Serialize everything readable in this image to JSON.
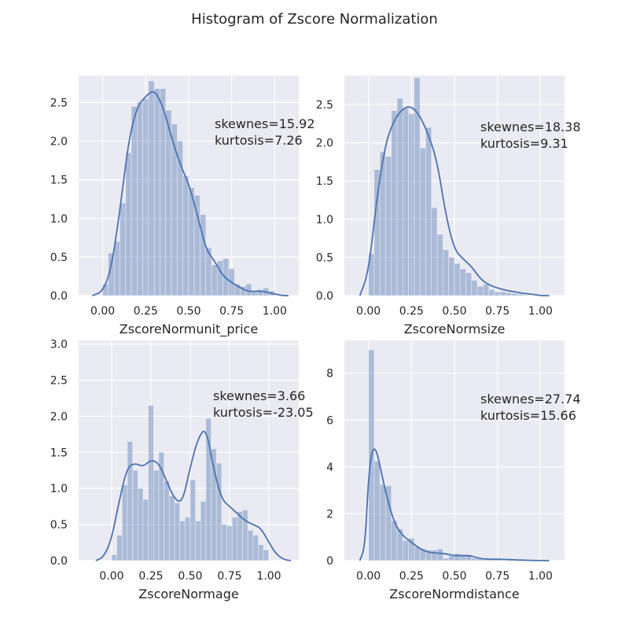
{
  "figure": {
    "title": "Histogram of Zscore Normalization"
  },
  "colors": {
    "background": "#eaeaf2",
    "grid": "#ffffff",
    "bar": "#4c72b0",
    "kde": "#4c72b0"
  },
  "chart_data": [
    {
      "type": "bar",
      "xlabel": "ZscoreNormunit_price",
      "annotation": [
        "skewnes=15.92",
        "kurtosis=7.26"
      ],
      "xlim": [
        -0.14,
        1.14
      ],
      "ylim": [
        0,
        2.85
      ],
      "xticks": [
        0.0,
        0.25,
        0.5,
        0.75,
        1.0
      ],
      "xtick_labels": [
        "0.00",
        "0.25",
        "0.50",
        "0.75",
        "1.00"
      ],
      "yticks": [
        0.0,
        0.5,
        1.0,
        1.5,
        2.0,
        2.5
      ],
      "ytick_labels": [
        "0.0",
        "0.5",
        "1.0",
        "1.5",
        "2.0",
        "2.5"
      ],
      "bin_start": 0.0,
      "bin_width": 0.0333,
      "values": [
        0.15,
        0.55,
        0.7,
        1.2,
        1.85,
        2.45,
        2.5,
        2.55,
        2.78,
        2.68,
        2.68,
        2.4,
        2.22,
        2.0,
        1.55,
        1.4,
        1.3,
        1.05,
        0.62,
        0.4,
        0.45,
        0.48,
        0.35,
        0.15,
        0.12,
        0.15,
        0.05,
        0.08,
        0.1,
        0.06
      ],
      "kde": [
        [
          -0.06,
          0.0
        ],
        [
          0.0,
          0.05
        ],
        [
          0.05,
          0.35
        ],
        [
          0.1,
          1.1
        ],
        [
          0.15,
          2.0
        ],
        [
          0.2,
          2.45
        ],
        [
          0.25,
          2.58
        ],
        [
          0.3,
          2.67
        ],
        [
          0.35,
          2.45
        ],
        [
          0.4,
          2.05
        ],
        [
          0.45,
          1.7
        ],
        [
          0.5,
          1.45
        ],
        [
          0.55,
          1.05
        ],
        [
          0.6,
          0.6
        ],
        [
          0.65,
          0.45
        ],
        [
          0.7,
          0.25
        ],
        [
          0.75,
          0.17
        ],
        [
          0.8,
          0.1
        ],
        [
          0.85,
          0.05
        ],
        [
          0.9,
          0.06
        ],
        [
          0.95,
          0.05
        ],
        [
          1.0,
          0.02
        ],
        [
          1.05,
          0.0
        ],
        [
          1.08,
          0.0
        ]
      ]
    },
    {
      "type": "bar",
      "xlabel": "ZscoreNormsize",
      "annotation": [
        "skewnes=18.38",
        "kurtosis=9.31"
      ],
      "xlim": [
        -0.14,
        1.14
      ],
      "ylim": [
        0,
        2.88
      ],
      "xticks": [
        0.0,
        0.25,
        0.5,
        0.75,
        1.0
      ],
      "xtick_labels": [
        "0.00",
        "0.25",
        "0.50",
        "0.75",
        "1.00"
      ],
      "yticks": [
        0.0,
        0.5,
        1.0,
        1.5,
        2.0,
        2.5
      ],
      "ytick_labels": [
        "0.0",
        "0.5",
        "1.0",
        "1.5",
        "2.0",
        "2.5"
      ],
      "bin_start": 0.0,
      "bin_width": 0.0333,
      "values": [
        0.55,
        1.65,
        1.88,
        1.82,
        2.42,
        2.58,
        2.45,
        2.38,
        2.85,
        1.93,
        2.2,
        1.15,
        0.8,
        0.6,
        0.5,
        0.42,
        0.35,
        0.3,
        0.2,
        0.12,
        0.15,
        0.08,
        0.05,
        0.05,
        0.04,
        0.03,
        0.02,
        0.01,
        0.0,
        0.0
      ],
      "kde": [
        [
          -0.05,
          0.0
        ],
        [
          0.0,
          0.3
        ],
        [
          0.05,
          1.3
        ],
        [
          0.1,
          2.0
        ],
        [
          0.15,
          2.3
        ],
        [
          0.2,
          2.45
        ],
        [
          0.25,
          2.48
        ],
        [
          0.3,
          2.35
        ],
        [
          0.35,
          2.1
        ],
        [
          0.4,
          1.75
        ],
        [
          0.45,
          1.05
        ],
        [
          0.5,
          0.6
        ],
        [
          0.55,
          0.48
        ],
        [
          0.6,
          0.38
        ],
        [
          0.65,
          0.22
        ],
        [
          0.7,
          0.14
        ],
        [
          0.75,
          0.1
        ],
        [
          0.8,
          0.07
        ],
        [
          0.85,
          0.05
        ],
        [
          0.9,
          0.03
        ],
        [
          0.95,
          0.02
        ],
        [
          1.0,
          0.0
        ],
        [
          1.05,
          0.0
        ]
      ]
    },
    {
      "type": "bar",
      "xlabel": "ZscoreNormage",
      "annotation": [
        "skewnes=3.66",
        "kurtosis=-23.05"
      ],
      "xlim": [
        -0.21,
        1.19
      ],
      "ylim": [
        0,
        3.05
      ],
      "xticks": [
        0.0,
        0.25,
        0.5,
        0.75,
        1.0
      ],
      "xtick_labels": [
        "0.00",
        "0.25",
        "0.50",
        "0.75",
        "1.00"
      ],
      "yticks": [
        0.0,
        0.5,
        1.0,
        1.5,
        2.0,
        2.5,
        3.0
      ],
      "ytick_labels": [
        "0.0",
        "0.5",
        "1.0",
        "1.5",
        "2.0",
        "2.5",
        "3.0"
      ],
      "bin_start": 0.0,
      "bin_width": 0.0333,
      "values": [
        0.08,
        0.35,
        1.05,
        1.65,
        1.25,
        1.0,
        0.85,
        2.15,
        1.25,
        1.5,
        1.1,
        0.9,
        0.8,
        0.55,
        0.6,
        1.12,
        0.55,
        0.82,
        1.97,
        1.55,
        1.35,
        0.5,
        0.48,
        0.6,
        0.68,
        0.7,
        0.42,
        0.35,
        0.22,
        0.15
      ],
      "kde": [
        [
          -0.1,
          0.0
        ],
        [
          -0.05,
          0.05
        ],
        [
          0.0,
          0.3
        ],
        [
          0.05,
          0.85
        ],
        [
          0.1,
          1.3
        ],
        [
          0.15,
          1.35
        ],
        [
          0.2,
          1.3
        ],
        [
          0.25,
          1.4
        ],
        [
          0.3,
          1.35
        ],
        [
          0.35,
          1.1
        ],
        [
          0.4,
          0.85
        ],
        [
          0.45,
          0.8
        ],
        [
          0.5,
          1.3
        ],
        [
          0.55,
          1.7
        ],
        [
          0.6,
          1.85
        ],
        [
          0.65,
          1.25
        ],
        [
          0.7,
          0.85
        ],
        [
          0.75,
          0.75
        ],
        [
          0.8,
          0.65
        ],
        [
          0.85,
          0.55
        ],
        [
          0.9,
          0.5
        ],
        [
          0.95,
          0.45
        ],
        [
          1.0,
          0.25
        ],
        [
          1.05,
          0.08
        ],
        [
          1.1,
          0.01
        ],
        [
          1.14,
          0.0
        ]
      ]
    },
    {
      "type": "bar",
      "xlabel": "ZscoreNormdistance",
      "annotation": [
        "skewnes=27.74",
        "kurtosis=15.66"
      ],
      "xlim": [
        -0.14,
        1.14
      ],
      "ylim": [
        0,
        9.4
      ],
      "xticks": [
        0.0,
        0.25,
        0.5,
        0.75,
        1.0
      ],
      "xtick_labels": [
        "0.00",
        "0.25",
        "0.50",
        "0.75",
        "1.00"
      ],
      "yticks": [
        0,
        2,
        4,
        6,
        8
      ],
      "ytick_labels": [
        "0",
        "2",
        "4",
        "6",
        "8"
      ],
      "bin_start": 0.0,
      "bin_width": 0.0333,
      "values": [
        9.0,
        4.25,
        3.25,
        3.2,
        1.7,
        1.35,
        0.85,
        0.95,
        0.6,
        0.5,
        0.45,
        0.45,
        0.5,
        0.1,
        0.2,
        0.3,
        0.25,
        0.25,
        0.1,
        0.08,
        0.05,
        0.05,
        0.04,
        0.03,
        0.03,
        0.02,
        0.02,
        0.01,
        0.01,
        0.0
      ],
      "kde": [
        [
          -0.05,
          0.0
        ],
        [
          -0.02,
          0.6
        ],
        [
          0.0,
          3.5
        ],
        [
          0.02,
          4.7
        ],
        [
          0.04,
          4.8
        ],
        [
          0.06,
          4.3
        ],
        [
          0.1,
          2.9
        ],
        [
          0.15,
          1.6
        ],
        [
          0.2,
          1.05
        ],
        [
          0.25,
          0.78
        ],
        [
          0.3,
          0.5
        ],
        [
          0.35,
          0.35
        ],
        [
          0.4,
          0.32
        ],
        [
          0.45,
          0.3
        ],
        [
          0.5,
          0.2
        ],
        [
          0.55,
          0.22
        ],
        [
          0.6,
          0.2
        ],
        [
          0.65,
          0.08
        ],
        [
          0.7,
          0.06
        ],
        [
          0.75,
          0.06
        ],
        [
          0.8,
          0.05
        ],
        [
          0.85,
          0.03
        ],
        [
          0.9,
          0.02
        ],
        [
          0.95,
          0.01
        ],
        [
          1.0,
          0.0
        ],
        [
          1.05,
          0.0
        ]
      ]
    }
  ]
}
